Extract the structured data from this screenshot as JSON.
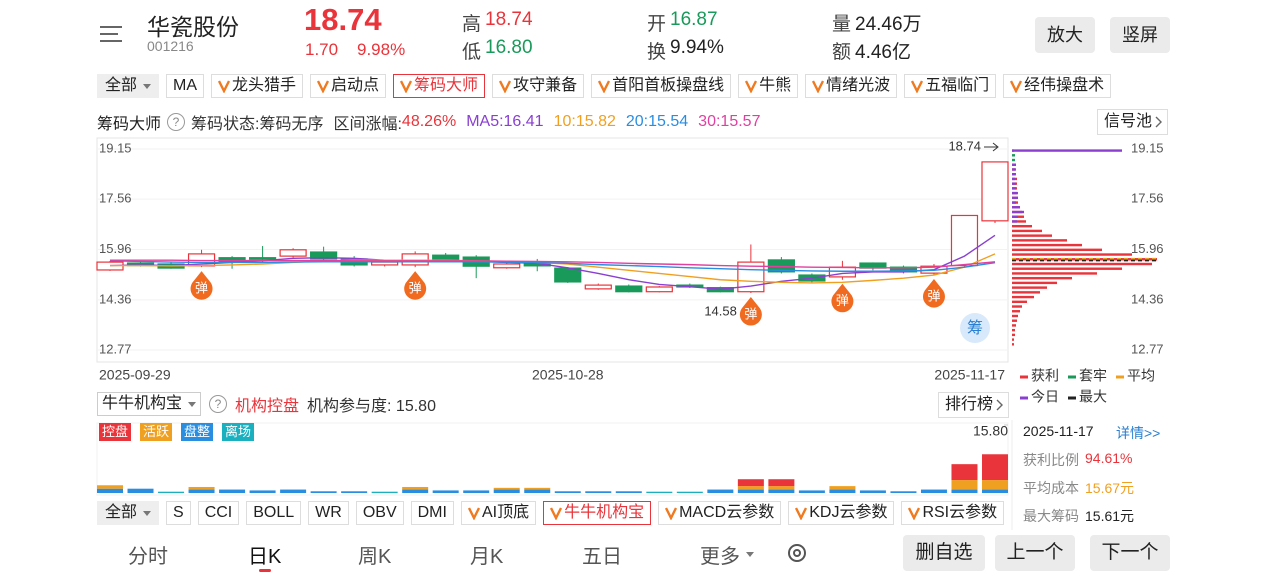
{
  "header": {
    "name": "华瓷股份",
    "code": "001216",
    "price": "18.74",
    "change": "1.70",
    "change_pct": "9.98%",
    "stats": [
      {
        "label": "高",
        "value": "18.74",
        "color": "#e8343a"
      },
      {
        "label": "低",
        "value": "16.80",
        "color": "#1a9a5a"
      },
      {
        "label": "开",
        "value": "16.87",
        "color": "#1a9a5a"
      },
      {
        "label": "换",
        "value": "9.94%",
        "color": "#222222"
      },
      {
        "label": "量",
        "value": "24.46万",
        "color": "#222222"
      },
      {
        "label": "额",
        "value": "4.46亿",
        "color": "#222222"
      }
    ],
    "buttons": [
      "放大",
      "竖屏"
    ]
  },
  "indicator_tabs": {
    "dropdown": "全部",
    "plain": [
      "MA"
    ],
    "pro": [
      "龙头猎手",
      "启动点",
      "筹码大师",
      "攻守兼备",
      "首阳首板操盘线",
      "牛熊",
      "情绪光波",
      "五福临门",
      "经伟操盘术"
    ],
    "active": 2
  },
  "indicator_info": {
    "name": "筹码大师",
    "help": "?",
    "status": "筹码状态:筹码无序",
    "range_label": "区间涨幅:",
    "range_value": "48.26%",
    "signal_button": "信号池"
  },
  "chart_data": [
    {
      "type": "candlestick",
      "categories": [
        "2025-09-29",
        null,
        null,
        null,
        null,
        null,
        null,
        null,
        null,
        null,
        null,
        null,
        null,
        null,
        null,
        "2025-10-28",
        null,
        null,
        null,
        null,
        null,
        null,
        null,
        null,
        null,
        null,
        null,
        null,
        null,
        "2025-11-17"
      ],
      "open": [
        15.31,
        15.53,
        15.5,
        15.44,
        15.7,
        15.7,
        15.75,
        15.88,
        15.66,
        15.47,
        15.47,
        15.78,
        15.72,
        15.38,
        15.53,
        15.37,
        14.71,
        14.8,
        14.62,
        14.83,
        14.75,
        14.62,
        15.63,
        15.15,
        15.09,
        15.53,
        15.4,
        15.21,
        15.45,
        16.87
      ],
      "high": [
        15.6,
        15.58,
        15.55,
        15.95,
        15.75,
        16.07,
        16.0,
        16.05,
        15.75,
        15.62,
        15.9,
        15.85,
        15.78,
        15.6,
        15.66,
        15.4,
        14.88,
        14.85,
        14.8,
        14.88,
        14.78,
        16.12,
        15.72,
        15.2,
        15.6,
        15.55,
        15.45,
        15.5,
        17.04,
        18.74
      ],
      "low": [
        15.28,
        15.42,
        15.35,
        15.4,
        15.35,
        15.55,
        15.7,
        15.6,
        15.42,
        15.42,
        15.4,
        15.58,
        15.05,
        15.35,
        15.27,
        14.9,
        14.68,
        14.6,
        14.6,
        14.74,
        14.6,
        14.58,
        15.2,
        14.9,
        15.0,
        15.3,
        15.2,
        15.15,
        15.4,
        16.8
      ],
      "close": [
        15.56,
        15.45,
        15.37,
        15.82,
        15.58,
        15.65,
        15.95,
        15.66,
        15.47,
        15.56,
        15.82,
        15.63,
        15.43,
        15.5,
        15.44,
        14.93,
        14.83,
        14.62,
        14.77,
        14.77,
        14.62,
        15.56,
        15.25,
        14.96,
        15.4,
        15.37,
        15.25,
        15.43,
        17.04,
        18.74
      ],
      "up_color": "#e8343a",
      "down_color": "#1a9a5a",
      "ylim": [
        12.77,
        19.15
      ],
      "yticks": [
        19.15,
        17.56,
        15.96,
        14.36,
        12.77
      ],
      "grid": true,
      "series": [
        {
          "name": "MA5:",
          "color": "#8a3fd1",
          "values": [
            15.45,
            15.47,
            15.45,
            15.5,
            15.55,
            15.6,
            15.68,
            15.7,
            15.68,
            15.62,
            15.6,
            15.62,
            15.58,
            15.55,
            15.52,
            15.38,
            15.2,
            15.0,
            14.85,
            14.78,
            14.7,
            14.8,
            14.95,
            15.05,
            15.2,
            15.25,
            15.25,
            15.32,
            15.75,
            16.41
          ]
        },
        {
          "name": "10:",
          "color": "#f0a020",
          "values": [
            15.45,
            15.45,
            15.44,
            15.45,
            15.47,
            15.5,
            15.55,
            15.6,
            15.62,
            15.62,
            15.62,
            15.62,
            15.6,
            15.58,
            15.55,
            15.5,
            15.4,
            15.3,
            15.2,
            15.1,
            15.0,
            14.95,
            14.92,
            14.9,
            14.92,
            14.98,
            15.05,
            15.15,
            15.4,
            15.82
          ]
        },
        {
          "name": "20:",
          "color": "#2a8ee0",
          "values": [
            15.6,
            15.58,
            15.56,
            15.55,
            15.55,
            15.55,
            15.56,
            15.57,
            15.57,
            15.57,
            15.57,
            15.57,
            15.57,
            15.56,
            15.55,
            15.52,
            15.48,
            15.45,
            15.42,
            15.38,
            15.35,
            15.32,
            15.3,
            15.28,
            15.27,
            15.27,
            15.28,
            15.3,
            15.4,
            15.54
          ]
        },
        {
          "name": "30:",
          "color": "#e040a0",
          "values": [
            15.62,
            15.62,
            15.62,
            15.61,
            15.61,
            15.61,
            15.61,
            15.61,
            15.6,
            15.6,
            15.6,
            15.6,
            15.6,
            15.59,
            15.58,
            15.57,
            15.55,
            15.52,
            15.5,
            15.48,
            15.45,
            15.43,
            15.42,
            15.4,
            15.39,
            15.38,
            15.38,
            15.4,
            15.48,
            15.57
          ]
        }
      ],
      "signals": [
        null,
        null,
        null,
        "弹",
        null,
        null,
        null,
        null,
        null,
        null,
        "弹",
        null,
        null,
        null,
        null,
        null,
        null,
        null,
        null,
        null,
        null,
        "弹",
        null,
        null,
        "弹",
        null,
        null,
        "弹",
        null,
        null
      ],
      "signal_color": "#f06a20",
      "chips": {
        "badge": "筹",
        "prices": [
          19.1,
          18.95,
          18.8,
          18.65,
          18.5,
          18.35,
          18.2,
          18.05,
          17.9,
          17.75,
          17.6,
          17.45,
          17.3,
          17.15,
          17,
          16.85,
          16.7,
          16.55,
          16.4,
          16.25,
          16.1,
          15.95,
          15.8,
          15.65,
          15.5,
          15.35,
          15.2,
          15.05,
          14.9,
          14.75,
          14.6,
          14.45,
          14.3,
          14.15,
          14,
          13.85,
          13.7,
          13.55,
          13.4,
          13.25,
          13.1,
          12.95
        ],
        "series": [
          {
            "name": "获利",
            "color": "#e8343a",
            "values": [
              0,
              0,
              0,
              4,
              4,
              4,
              5,
              5,
              5,
              6,
              6,
              6,
              8,
              10,
              12,
              14,
              20,
              30,
              40,
              55,
              70,
              90,
              120,
              145,
              140,
              110,
              85,
              60,
              45,
              35,
              28,
              22,
              15,
              10,
              8,
              6,
              5,
              4,
              3,
              3,
              2,
              2
            ]
          },
          {
            "name": "套牢",
            "color": "#1a9a5a",
            "values": [
              2,
              3,
              3,
              0,
              0,
              0,
              0,
              0,
              0,
              0,
              0,
              0,
              0,
              0,
              0,
              0,
              0,
              0,
              0,
              0,
              0,
              0,
              0,
              0,
              0,
              0,
              0,
              0,
              0,
              0,
              0,
              0,
              0,
              0,
              0,
              0,
              0,
              0,
              0,
              0,
              0,
              0
            ]
          },
          {
            "name": "今日",
            "color": "#8a3fd1",
            "values": [
              110,
              0,
              0,
              4,
              3,
              3,
              3,
              4,
              4,
              5,
              6,
              4,
              8,
              12,
              6,
              5,
              0,
              0,
              0,
              0,
              0,
              0,
              0,
              0,
              0,
              0,
              0,
              0,
              0,
              0,
              0,
              0,
              0,
              0,
              0,
              0,
              0,
              0,
              0,
              0,
              0,
              0
            ]
          }
        ],
        "avg": {
          "name": "平均",
          "value": 15.67,
          "color": "#f0a020"
        },
        "max": {
          "name": "最大",
          "value": 15.61,
          "color": "#222222"
        }
      }
    },
    {
      "type": "stacked_bar",
      "title": "牛牛机构宝",
      "help": "?",
      "status": "机构控盘",
      "participation": "机构参与度: 15.80",
      "ranking": "排行榜",
      "ylim": [
        0,
        15.8
      ],
      "yticks": [
        {
          "value": 15.8,
          "label": "15.80"
        }
      ],
      "series": [
        {
          "name": "控盘",
          "color": "#e8343a",
          "values": [
            0,
            0,
            0,
            0,
            0,
            0,
            0,
            0,
            0,
            0,
            0,
            0,
            0,
            0,
            0,
            0,
            0,
            0,
            0,
            0,
            0,
            1.6,
            1.6,
            0,
            0,
            0,
            0,
            0,
            3.7,
            6.0
          ]
        },
        {
          "name": "活跃",
          "color": "#f0a020",
          "values": [
            0.8,
            0,
            0,
            0.6,
            0,
            0,
            0,
            0,
            0,
            0,
            0.6,
            0,
            0,
            0.4,
            0.4,
            0,
            0,
            0,
            0,
            0,
            0,
            0.8,
            0.8,
            0,
            0.8,
            0,
            0,
            0,
            2.2,
            2.2
          ]
        },
        {
          "name": "盘整",
          "color": "#2a8ee0",
          "values": [
            1,
            1,
            0,
            0.8,
            0.8,
            0.6,
            0.8,
            0.4,
            0.4,
            0,
            0.8,
            0.6,
            0.6,
            0.8,
            0.8,
            0.4,
            0.4,
            0.4,
            0,
            0,
            0.8,
            0.8,
            0.8,
            0.6,
            0.8,
            0.6,
            0.4,
            0.8,
            0.8,
            0.8
          ]
        },
        {
          "name": "离场",
          "color": "#1ab0c0",
          "values": [
            0,
            0,
            0.3,
            0,
            0,
            0,
            0,
            0,
            0,
            0.3,
            0,
            0,
            0,
            0,
            0,
            0,
            0,
            0,
            0.3,
            0.3,
            0,
            0,
            0,
            0,
            0,
            0,
            0,
            0,
            0,
            0
          ]
        }
      ]
    }
  ],
  "chip_panel": {
    "date": "2025-11-17",
    "detail": "详情>>",
    "rows": [
      {
        "label": "获利比例",
        "value": "94.61%",
        "color": "#e8343a"
      },
      {
        "label": "平均成本",
        "value": "15.67元",
        "color": "#f0a020"
      },
      {
        "label": "最大筹码",
        "value": "15.61元",
        "color": "#222222"
      }
    ]
  },
  "bottom_tabs": {
    "dropdown": "全部",
    "plain": [
      "S",
      "CCI",
      "BOLL",
      "WR",
      "OBV",
      "DMI"
    ],
    "pro": [
      "AI顶底",
      "牛牛机构宝",
      "MACD云参数",
      "KDJ云参数",
      "RSI云参数"
    ],
    "active": 1
  },
  "nav": {
    "items": [
      "分时",
      "日K",
      "周K",
      "月K",
      "五日",
      "更多"
    ],
    "active": 1,
    "buttons": [
      "删自选",
      "上一个",
      "下一个"
    ]
  }
}
